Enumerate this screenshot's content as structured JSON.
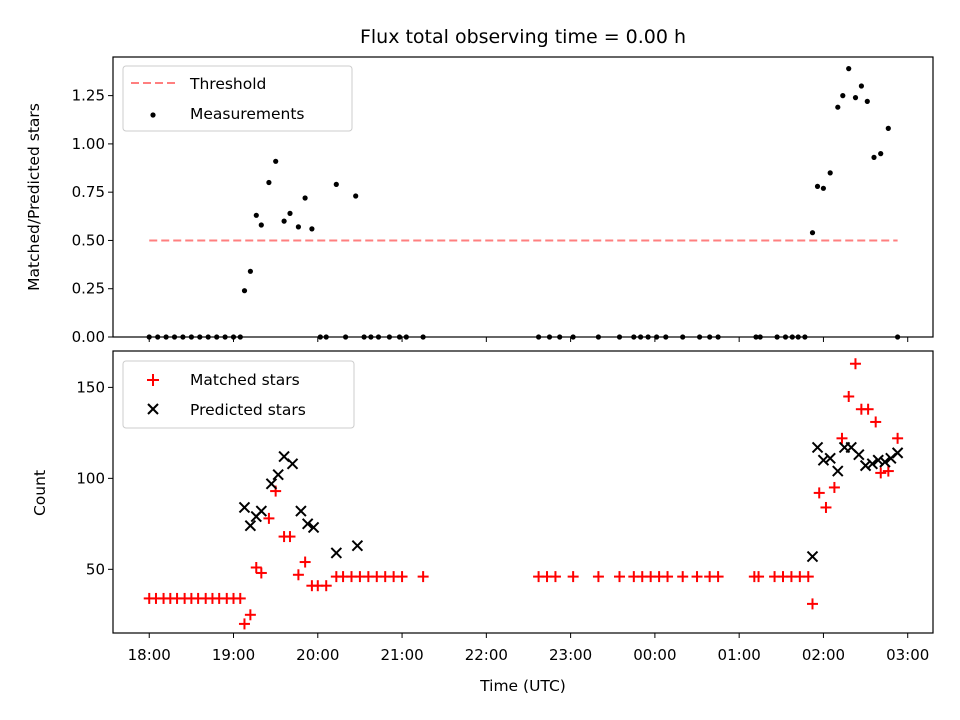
{
  "chart_data": [
    {
      "type": "scatter",
      "title": "Flux total observing time = 0.00 h",
      "xlabel": "",
      "ylabel": "Matched/Predicted stars",
      "xlim": [
        -0.43,
        9.3
      ],
      "ylim": [
        0,
        1.45
      ],
      "yticks": [
        "0.00",
        "0.25",
        "0.50",
        "0.75",
        "1.00",
        "1.25"
      ],
      "xticks": [
        0,
        1,
        2,
        3,
        4,
        5,
        6,
        7,
        8,
        9
      ],
      "legend": {
        "position": "top-left",
        "entries": [
          "Threshold",
          "Measurements"
        ]
      },
      "series": [
        {
          "name": "Threshold",
          "kind": "dashed-line",
          "color": "#ff7f7f",
          "x": [
            0.0,
            8.88
          ],
          "y": [
            0.5,
            0.5
          ]
        },
        {
          "name": "Measurements",
          "kind": "dot",
          "color": "#000000",
          "x": [
            0.0,
            0.1,
            0.2,
            0.3,
            0.4,
            0.5,
            0.6,
            0.7,
            0.8,
            0.9,
            1.0,
            1.08,
            1.13,
            1.2,
            1.27,
            1.33,
            1.42,
            1.5,
            1.6,
            1.67,
            1.77,
            1.85,
            1.93,
            2.03,
            2.1,
            2.22,
            2.33,
            2.45,
            2.55,
            2.63,
            2.72,
            2.85,
            2.97,
            3.05,
            3.25,
            4.62,
            4.75,
            4.87,
            5.03,
            5.33,
            5.58,
            5.75,
            5.83,
            5.92,
            6.02,
            6.13,
            6.33,
            6.53,
            6.65,
            6.75,
            7.2,
            7.25,
            7.45,
            7.55,
            7.63,
            7.7,
            7.78,
            7.87,
            7.93,
            8.0,
            8.08,
            8.17,
            8.23,
            8.3,
            8.38,
            8.45,
            8.52,
            8.6,
            8.68,
            8.77,
            8.88
          ],
          "y": [
            0,
            0,
            0,
            0,
            0,
            0,
            0,
            0,
            0,
            0,
            0,
            0,
            0.24,
            0.34,
            0.63,
            0.58,
            0.8,
            0.91,
            0.6,
            0.64,
            0.57,
            0.72,
            0.56,
            0,
            0,
            0.79,
            0,
            0.73,
            0,
            0,
            0,
            0,
            0,
            0,
            0,
            0,
            0,
            0,
            0,
            0,
            0,
            0,
            0,
            0,
            0,
            0,
            0,
            0,
            0,
            0,
            0,
            0,
            0,
            0,
            0,
            0,
            0,
            0.54,
            0.78,
            0.77,
            0.85,
            1.19,
            1.25,
            1.39,
            1.24,
            1.3,
            1.22,
            0.93,
            0.95,
            1.08,
            0
          ]
        }
      ]
    },
    {
      "type": "scatter",
      "title": "",
      "xlabel": "Time (UTC)",
      "ylabel": "Count",
      "xlim": [
        -0.43,
        9.3
      ],
      "ylim": [
        15,
        170
      ],
      "yticks": [
        "50",
        "100",
        "150"
      ],
      "xtick_labels": [
        "18:00",
        "19:00",
        "20:00",
        "21:00",
        "22:00",
        "23:00",
        "00:00",
        "01:00",
        "02:00",
        "03:00"
      ],
      "legend": {
        "position": "top-left",
        "entries": [
          "Matched stars",
          "Predicted stars"
        ]
      },
      "series": [
        {
          "name": "Matched stars",
          "marker": "plus",
          "color": "#ff0000",
          "x": [
            0.0,
            0.08,
            0.17,
            0.25,
            0.33,
            0.42,
            0.5,
            0.58,
            0.67,
            0.75,
            0.83,
            0.92,
            1.0,
            1.08,
            1.13,
            1.2,
            1.27,
            1.33,
            1.42,
            1.5,
            1.6,
            1.67,
            1.77,
            1.85,
            1.93,
            2.0,
            2.1,
            2.22,
            2.3,
            2.4,
            2.5,
            2.6,
            2.7,
            2.8,
            2.9,
            3.0,
            3.25,
            4.62,
            4.72,
            4.82,
            5.03,
            5.33,
            5.58,
            5.75,
            5.85,
            5.95,
            6.05,
            6.15,
            6.33,
            6.5,
            6.65,
            6.75,
            7.18,
            7.23,
            7.42,
            7.52,
            7.62,
            7.72,
            7.82,
            7.87,
            7.95,
            8.03,
            8.13,
            8.22,
            8.3,
            8.38,
            8.45,
            8.53,
            8.62,
            8.68,
            8.77,
            8.88
          ],
          "y": [
            34,
            34,
            34,
            34,
            34,
            34,
            34,
            34,
            34,
            34,
            34,
            34,
            34,
            34,
            20,
            25,
            51,
            48,
            78,
            93,
            68,
            68,
            47,
            54,
            41,
            41,
            41,
            46,
            46,
            46,
            46,
            46,
            46,
            46,
            46,
            46,
            46,
            46,
            46,
            46,
            46,
            46,
            46,
            46,
            46,
            46,
            46,
            46,
            46,
            46,
            46,
            46,
            46,
            46,
            46,
            46,
            46,
            46,
            46,
            31,
            92,
            84,
            95,
            122,
            145,
            163,
            138,
            138,
            131,
            103,
            104,
            122
          ]
        },
        {
          "name": "Predicted stars",
          "marker": "x",
          "color": "#000000",
          "x": [
            1.13,
            1.2,
            1.27,
            1.33,
            1.45,
            1.53,
            1.6,
            1.7,
            1.8,
            1.88,
            1.95,
            2.22,
            2.47,
            7.87,
            7.93,
            8.0,
            8.08,
            8.17,
            8.25,
            8.33,
            8.42,
            8.5,
            8.58,
            8.65,
            8.73,
            8.8,
            8.88
          ],
          "y": [
            84,
            74,
            79,
            82,
            97,
            102,
            112,
            108,
            82,
            75,
            73,
            59,
            63,
            57,
            117,
            110,
            111,
            104,
            117,
            117,
            113,
            107,
            108,
            110,
            109,
            111,
            114
          ]
        }
      ]
    }
  ]
}
